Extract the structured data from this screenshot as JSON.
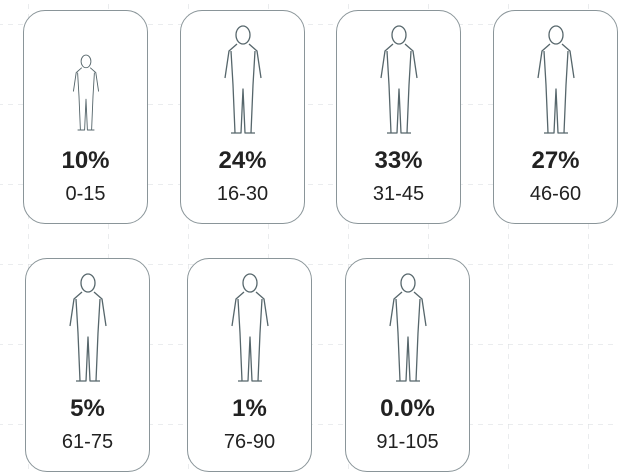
{
  "cards": [
    {
      "percent": "10%",
      "range": "0-15"
    },
    {
      "percent": "24%",
      "range": "16-30"
    },
    {
      "percent": "33%",
      "range": "31-45"
    },
    {
      "percent": "27%",
      "range": "46-60"
    },
    {
      "percent": "5%",
      "range": "61-75"
    },
    {
      "percent": "1%",
      "range": "76-90"
    },
    {
      "percent": "0.0%",
      "range": "91-105"
    }
  ]
}
